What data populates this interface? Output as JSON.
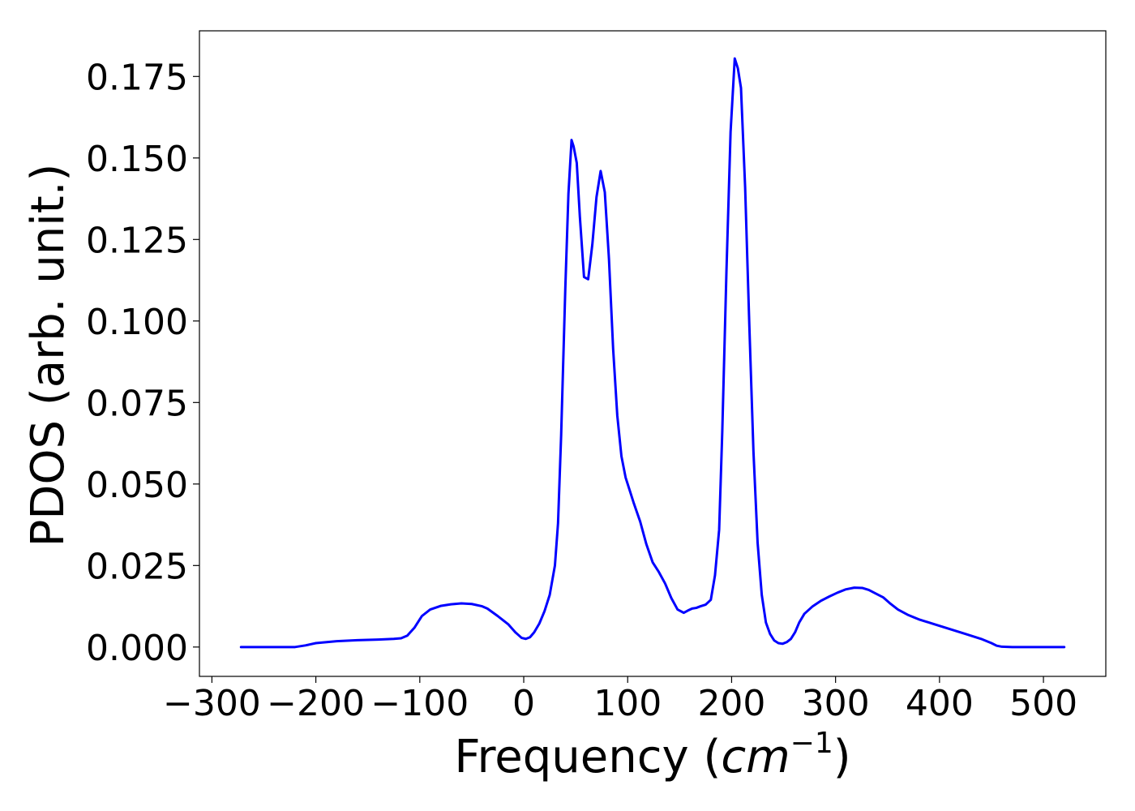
{
  "chart_data": {
    "type": "line",
    "title": "",
    "xlabel": "Frequency (",
    "xlabel_unit_base": "cm",
    "xlabel_unit_exp": "−1",
    "xlabel_suffix": ")",
    "ylabel": "PDOS (arb. unit.)",
    "xlim": [
      -312,
      560
    ],
    "ylim": [
      -0.009,
      0.189
    ],
    "grid": false,
    "legend": "none",
    "xticks": [
      -300,
      -200,
      -100,
      0,
      100,
      200,
      300,
      400,
      500
    ],
    "xtick_labels": [
      "−300",
      "−200",
      "−100",
      "0",
      "100",
      "200",
      "300",
      "400",
      "500"
    ],
    "yticks": [
      0.0,
      0.025,
      0.05,
      0.075,
      0.1,
      0.125,
      0.15,
      0.175
    ],
    "ytick_labels": [
      "0.000",
      "0.025",
      "0.050",
      "0.075",
      "0.100",
      "0.125",
      "0.150",
      "0.175"
    ],
    "line_color": "#0000ff",
    "series": [
      {
        "x": [
          -272,
          -240,
          -220,
          -210,
          -200,
          -180,
          -160,
          -140,
          -125,
          -118,
          -112,
          -105,
          -98,
          -90,
          -80,
          -70,
          -60,
          -50,
          -40,
          -35,
          -25,
          -15,
          -8,
          -2,
          2,
          6,
          10,
          15,
          20,
          25,
          30,
          33,
          36,
          40,
          43,
          46,
          48,
          51,
          54,
          58,
          62,
          66,
          70,
          74,
          78,
          82,
          86,
          90,
          94,
          98,
          102,
          106,
          112,
          118,
          124,
          130,
          136,
          142,
          148,
          154,
          158,
          162,
          166,
          170,
          175,
          180,
          184,
          188,
          191,
          195,
          199,
          203,
          206,
          209,
          213,
          217,
          221,
          225,
          229,
          233,
          237,
          241,
          245,
          249,
          253,
          257,
          261,
          265,
          270,
          278,
          286,
          294,
          302,
          310,
          318,
          326,
          332,
          338,
          346,
          352,
          360,
          370,
          380,
          395,
          410,
          425,
          440,
          450,
          455,
          460,
          470,
          490,
          520
        ],
        "y": [
          0.0,
          0.0,
          0.0,
          0.0005,
          0.0012,
          0.0018,
          0.0021,
          0.0023,
          0.0025,
          0.0027,
          0.0035,
          0.006,
          0.0095,
          0.0115,
          0.0126,
          0.0131,
          0.0134,
          0.0132,
          0.0125,
          0.0118,
          0.0095,
          0.007,
          0.0045,
          0.0028,
          0.0025,
          0.003,
          0.0045,
          0.0072,
          0.011,
          0.016,
          0.025,
          0.038,
          0.065,
          0.11,
          0.139,
          0.1555,
          0.1535,
          0.1485,
          0.132,
          0.1135,
          0.1128,
          0.1235,
          0.138,
          0.146,
          0.1395,
          0.119,
          0.0915,
          0.071,
          0.0585,
          0.052,
          0.048,
          0.044,
          0.0385,
          0.0315,
          0.026,
          0.023,
          0.0195,
          0.015,
          0.0115,
          0.0105,
          0.0112,
          0.0118,
          0.012,
          0.0125,
          0.013,
          0.0145,
          0.022,
          0.036,
          0.066,
          0.115,
          0.158,
          0.1805,
          0.1775,
          0.1715,
          0.141,
          0.099,
          0.06,
          0.032,
          0.016,
          0.0075,
          0.004,
          0.002,
          0.0012,
          0.001,
          0.0015,
          0.0025,
          0.0045,
          0.0075,
          0.0102,
          0.0125,
          0.0142,
          0.0155,
          0.0167,
          0.0177,
          0.0182,
          0.0181,
          0.0175,
          0.0165,
          0.0152,
          0.0135,
          0.0115,
          0.0098,
          0.0085,
          0.007,
          0.0055,
          0.004,
          0.0025,
          0.0012,
          0.0004,
          0.0001,
          0.0,
          0.0,
          0.0
        ]
      }
    ]
  }
}
